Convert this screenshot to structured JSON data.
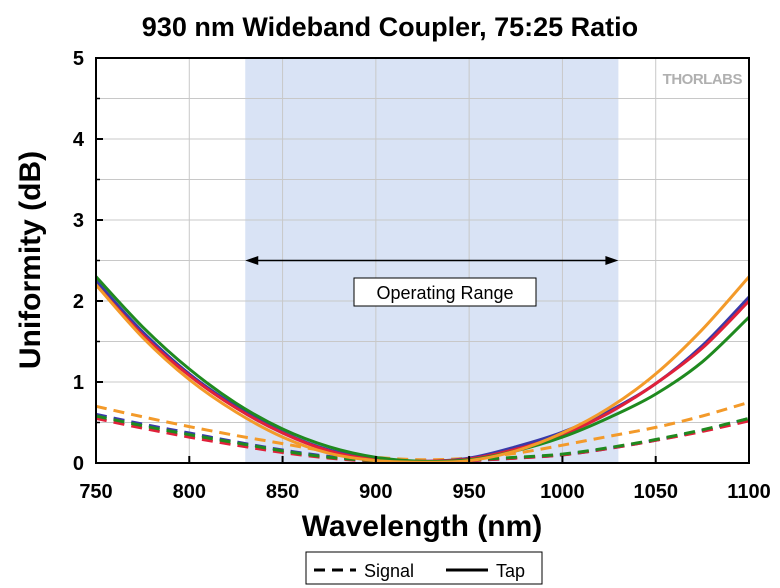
{
  "chart_data": {
    "type": "line",
    "title": "930 nm Wideband Coupler, 75:25 Ratio",
    "xlabel": "Wavelength (nm)",
    "ylabel": "Uniformity (dB)",
    "xlim": [
      750,
      1100
    ],
    "ylim": [
      0,
      5
    ],
    "xticks": [
      750,
      800,
      850,
      900,
      950,
      1000,
      1050,
      1100
    ],
    "yticks": [
      0,
      1,
      2,
      3,
      4,
      5
    ],
    "grid": true,
    "operating_range": {
      "label": "Operating Range",
      "x": [
        830,
        1030
      ],
      "arrow_y": 2.5
    },
    "logo": "THORLABS",
    "legend": {
      "position": "bottom-center",
      "entries": [
        {
          "label": "Signal",
          "style": "dashed"
        },
        {
          "label": "Tap",
          "style": "solid"
        }
      ]
    },
    "colors": {
      "shade": "#d9e3f5",
      "blue": "#3a3aa8",
      "red": "#e0203a",
      "green": "#1f8a1f",
      "orange": "#f39a2a"
    },
    "series": [
      {
        "color": "blue",
        "style": "solid",
        "x": [
          750,
          775,
          800,
          825,
          850,
          875,
          900,
          925,
          950,
          975,
          1000,
          1025,
          1050,
          1075,
          1100
        ],
        "y": [
          2.25,
          1.62,
          1.1,
          0.7,
          0.38,
          0.16,
          0.05,
          0.02,
          0.06,
          0.2,
          0.38,
          0.64,
          0.98,
          1.45,
          2.05
        ]
      },
      {
        "color": "red",
        "style": "solid",
        "x": [
          750,
          775,
          800,
          825,
          850,
          875,
          900,
          925,
          950,
          975,
          1000,
          1025,
          1050,
          1075,
          1100
        ],
        "y": [
          2.2,
          1.58,
          1.08,
          0.68,
          0.37,
          0.15,
          0.04,
          0.02,
          0.05,
          0.17,
          0.35,
          0.62,
          0.98,
          1.42,
          2.0
        ]
      },
      {
        "color": "green",
        "style": "solid",
        "x": [
          750,
          775,
          800,
          825,
          850,
          875,
          900,
          925,
          950,
          975,
          1000,
          1025,
          1050,
          1075,
          1100
        ],
        "y": [
          2.3,
          1.68,
          1.16,
          0.74,
          0.42,
          0.2,
          0.07,
          0.02,
          0.04,
          0.15,
          0.32,
          0.56,
          0.85,
          1.25,
          1.8
        ]
      },
      {
        "color": "orange",
        "style": "solid",
        "x": [
          750,
          775,
          800,
          825,
          850,
          875,
          900,
          925,
          950,
          975,
          1000,
          1025,
          1050,
          1075,
          1100
        ],
        "y": [
          2.2,
          1.55,
          1.03,
          0.63,
          0.32,
          0.12,
          0.03,
          0.01,
          0.03,
          0.15,
          0.37,
          0.68,
          1.1,
          1.65,
          2.3
        ]
      },
      {
        "color": "blue",
        "style": "dashed",
        "x": [
          750,
          775,
          800,
          825,
          850,
          875,
          900,
          925,
          950,
          975,
          1000,
          1025,
          1050,
          1075,
          1100
        ],
        "y": [
          0.6,
          0.48,
          0.37,
          0.26,
          0.16,
          0.08,
          0.03,
          0.02,
          0.03,
          0.06,
          0.1,
          0.18,
          0.28,
          0.4,
          0.55
        ]
      },
      {
        "color": "red",
        "style": "dashed",
        "x": [
          750,
          775,
          800,
          825,
          850,
          875,
          900,
          925,
          950,
          975,
          1000,
          1025,
          1050,
          1075,
          1100
        ],
        "y": [
          0.55,
          0.43,
          0.32,
          0.22,
          0.13,
          0.06,
          0.02,
          0.01,
          0.03,
          0.06,
          0.1,
          0.18,
          0.28,
          0.39,
          0.52
        ]
      },
      {
        "color": "green",
        "style": "dashed",
        "x": [
          750,
          775,
          800,
          825,
          850,
          875,
          900,
          925,
          950,
          975,
          1000,
          1025,
          1050,
          1075,
          1100
        ],
        "y": [
          0.58,
          0.46,
          0.35,
          0.25,
          0.15,
          0.07,
          0.03,
          0.02,
          0.04,
          0.07,
          0.11,
          0.19,
          0.29,
          0.41,
          0.55
        ]
      },
      {
        "color": "orange",
        "style": "dashed",
        "x": [
          750,
          775,
          800,
          825,
          850,
          875,
          900,
          925,
          950,
          975,
          1000,
          1025,
          1050,
          1075,
          1100
        ],
        "y": [
          0.7,
          0.57,
          0.45,
          0.34,
          0.24,
          0.14,
          0.07,
          0.04,
          0.06,
          0.12,
          0.22,
          0.33,
          0.44,
          0.58,
          0.75
        ]
      }
    ]
  }
}
